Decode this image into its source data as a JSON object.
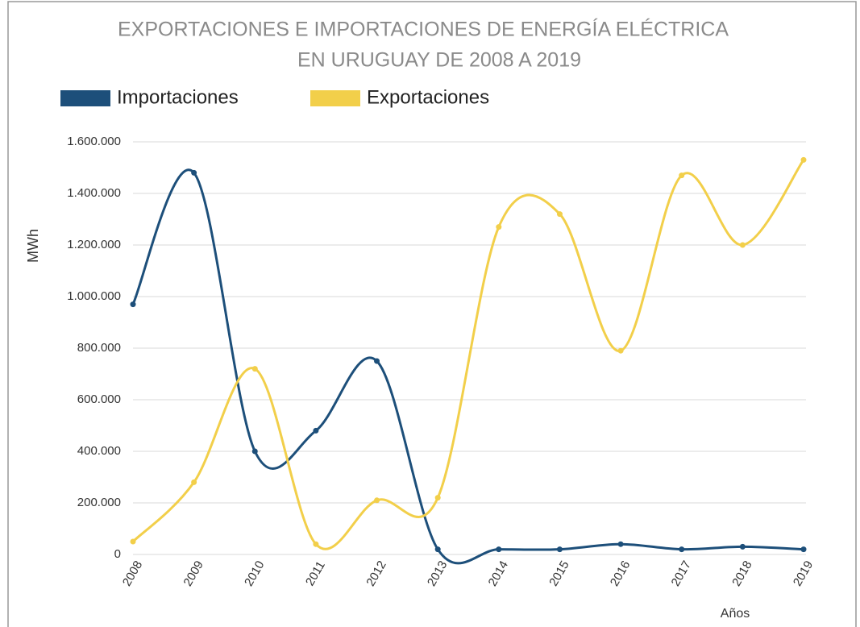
{
  "chart_data": {
    "type": "line",
    "title": [
      "EXPORTACIONES E IMPORTACIONES DE ENERGÍA ELÉCTRICA",
      "EN URUGUAY DE 2008 A 2019"
    ],
    "y_label": "MWh",
    "x_label": "Años",
    "categories": [
      "2008",
      "2009",
      "2010",
      "2011",
      "2012",
      "2013",
      "2014",
      "2015",
      "2016",
      "2017",
      "2018",
      "2019"
    ],
    "series": [
      {
        "name": "Importaciones",
        "color": "#1d4f7a",
        "values": [
          970000,
          1480000,
          400000,
          480000,
          750000,
          20000,
          20000,
          20000,
          40000,
          20000,
          30000,
          20000
        ]
      },
      {
        "name": "Exportaciones",
        "color": "#f2cf4a",
        "values": [
          50000,
          280000,
          720000,
          40000,
          210000,
          220000,
          1270000,
          1320000,
          790000,
          1470000,
          1200000,
          1530000
        ]
      }
    ],
    "ylim": [
      0,
      1600000
    ],
    "yticks": [
      0,
      {
        "value": 200000,
        "label": "200.000"
      },
      {
        "value": 400000,
        "label": "400.000"
      },
      {
        "value": 600000,
        "label": "600.000"
      },
      {
        "value": 800000,
        "label": "800.000"
      },
      {
        "value": 1000000,
        "label": "1.000.000"
      },
      {
        "value": 1200000,
        "label": "1.200.000"
      },
      {
        "value": 1400000,
        "label": "1.400.000"
      },
      {
        "value": 1600000,
        "label": "1.600.000"
      }
    ],
    "grid": true,
    "smooth": true,
    "legend": "top-left"
  }
}
